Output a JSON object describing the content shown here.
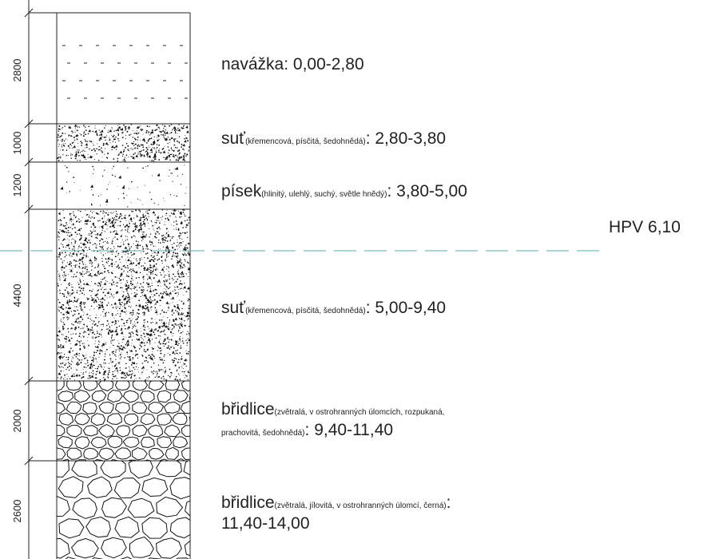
{
  "layers": [
    {
      "thickness": "2800",
      "name": "navážka",
      "detail": "",
      "range": ": 0,00-2,80",
      "pattern": "dash"
    },
    {
      "thickness": "1000",
      "name": "suť",
      "detail": "(křemencová, písčitá, šedohnědá)",
      "range": ": 2,80-3,80",
      "pattern": "stipple"
    },
    {
      "thickness": "1200",
      "name": "písek",
      "detail": "(hlinitý, ulehlý, suchý, světle hnědý)",
      "range": ": 3,80-5,00",
      "pattern": "sparse"
    },
    {
      "thickness": "4400",
      "name": "suť",
      "detail": "(křemencová, písčitá, šedohnědá)",
      "range": ": 5,00-9,40",
      "pattern": "stipple"
    },
    {
      "thickness": "2000",
      "name": "břidlice",
      "detail": "(zvětralá, v ostrohranných úlomcích, rozpukaná,",
      "detail2": "prachovitá, šedohnědá)",
      "range": ": 9,40-11,40",
      "pattern": "cobble-small"
    },
    {
      "thickness": "2600",
      "name": "břidlice",
      "detail": "(zvětralá, jílovitá, v ostrohranných úlomcí, černá)",
      "detail_end": ":",
      "range2": "11,40-14,00",
      "pattern": "cobble-large"
    }
  ],
  "water_level": {
    "label": "HPV 6,10",
    "color": "#5aa8b0"
  }
}
